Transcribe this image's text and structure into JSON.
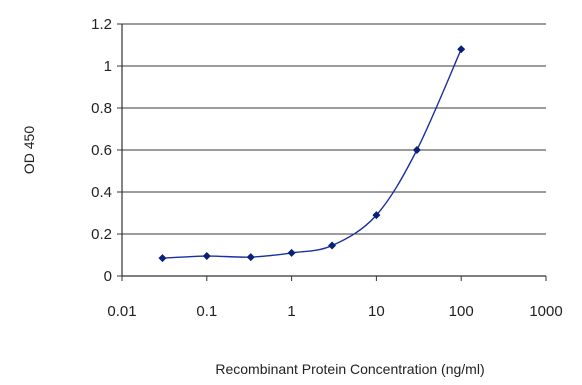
{
  "chart_data": {
    "type": "line",
    "title": "",
    "xlabel": "Recombinant Protein Concentration (ng/ml)",
    "ylabel": "OD 450",
    "x_scale": "log",
    "xlim": [
      0.01,
      1000
    ],
    "ylim": [
      0,
      1.2
    ],
    "x_ticks": [
      "0.01",
      "0.1",
      "1",
      "10",
      "100",
      "1000"
    ],
    "y_ticks": [
      "0",
      "0.2",
      "0.4",
      "0.6",
      "0.8",
      "1",
      "1.2"
    ],
    "grid": "horizontal",
    "series": [
      {
        "color": "#0a1f78",
        "marker": "diamond",
        "points": [
          {
            "x": 0.03,
            "y": 0.085
          },
          {
            "x": 0.1,
            "y": 0.095
          },
          {
            "x": 0.33,
            "y": 0.09
          },
          {
            "x": 1,
            "y": 0.11
          },
          {
            "x": 3,
            "y": 0.145
          },
          {
            "x": 10,
            "y": 0.29
          },
          {
            "x": 30,
            "y": 0.6
          },
          {
            "x": 100,
            "y": 1.08
          }
        ]
      }
    ]
  }
}
